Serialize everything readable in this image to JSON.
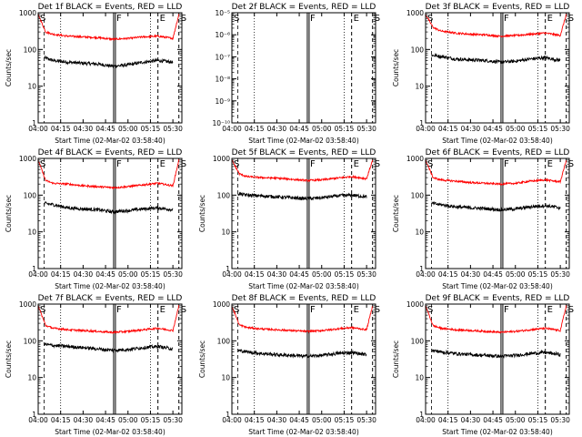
{
  "colors": {
    "events": "#000000",
    "lld": "#ff0000",
    "axis": "#000000",
    "background": "#ffffff"
  },
  "chart_data": [
    {
      "type": "line",
      "title": "Det 1f BLACK = Events, RED = LLD",
      "xlabel": "Start Time (02-Mar-02 03:58:40)",
      "ylabel": "Counts/sec",
      "xlim": [
        "04:00",
        "05:36"
      ],
      "ylim": [
        1,
        1000
      ],
      "yscale": "log",
      "x_ticks": [
        "04:00",
        "04:15",
        "04:30",
        "04:45",
        "05:00",
        "05:15",
        "05:30"
      ],
      "y_ticks": [
        "1",
        "10",
        "100",
        "1000"
      ],
      "markers": [
        {
          "time": "04:00",
          "label": "S"
        },
        {
          "time": "04:51",
          "label": "F"
        },
        {
          "time": "05:20",
          "label": "E"
        },
        {
          "time": "05:34",
          "label": "S"
        }
      ],
      "series": [
        {
          "name": "Events",
          "color": "#000000",
          "x": [
            "04:04",
            "04:10",
            "04:20",
            "04:30",
            "04:40",
            "04:50",
            "05:00",
            "05:10",
            "05:20",
            "05:30"
          ],
          "y": [
            60,
            50,
            45,
            42,
            40,
            35,
            38,
            45,
            50,
            45
          ]
        },
        {
          "name": "LLD",
          "color": "#ff0000",
          "x": [
            "04:00",
            "04:05",
            "04:10",
            "04:20",
            "04:30",
            "04:40",
            "04:50",
            "05:00",
            "05:10",
            "05:20",
            "05:30",
            "05:34"
          ],
          "y": [
            900,
            300,
            260,
            230,
            220,
            210,
            190,
            200,
            220,
            230,
            200,
            900
          ]
        }
      ]
    },
    {
      "type": "line",
      "title": "Det 2f BLACK = Events, RED = LLD",
      "xlabel": "Start Time (02-Mar-02 03:58:40)",
      "ylabel": "",
      "xlim": [
        "04:00",
        "05:36"
      ],
      "ylim": [
        1e-10,
        1e-05
      ],
      "yscale": "log",
      "x_ticks": [
        "04:00",
        "04:15",
        "04:30",
        "04:45",
        "05:00",
        "05:15",
        "05:30"
      ],
      "y_ticks": [
        "10⁻¹⁰",
        "10⁻⁹",
        "10⁻⁸",
        "10⁻⁷",
        "10⁻⁶",
        "10⁻⁵"
      ],
      "markers": [
        {
          "time": "04:00",
          "label": "S"
        },
        {
          "time": "04:51",
          "label": "F"
        },
        {
          "time": "05:20",
          "label": "E"
        },
        {
          "time": "05:34",
          "label": "S"
        }
      ],
      "series": []
    },
    {
      "type": "line",
      "title": "Det 3f BLACK = Events, RED = LLD",
      "xlabel": "Start Time (02-Mar-02 03:58:40)",
      "ylabel": "Counts/sec",
      "xlim": [
        "04:00",
        "05:36"
      ],
      "ylim": [
        1,
        1000
      ],
      "yscale": "log",
      "x_ticks": [
        "04:00",
        "04:15",
        "04:30",
        "04:45",
        "05:00",
        "05:15",
        "05:30"
      ],
      "y_ticks": [
        "1",
        "10",
        "100",
        "1000"
      ],
      "markers": [
        {
          "time": "04:00",
          "label": "S"
        },
        {
          "time": "04:51",
          "label": "F"
        },
        {
          "time": "05:20",
          "label": "E"
        },
        {
          "time": "05:34",
          "label": "S"
        }
      ],
      "series": [
        {
          "name": "Events",
          "color": "#000000",
          "x": [
            "04:04",
            "04:10",
            "04:20",
            "04:30",
            "04:40",
            "04:50",
            "05:00",
            "05:10",
            "05:20",
            "05:30"
          ],
          "y": [
            70,
            65,
            55,
            52,
            50,
            45,
            48,
            55,
            60,
            50
          ]
        },
        {
          "name": "LLD",
          "color": "#ff0000",
          "x": [
            "04:00",
            "04:05",
            "04:10",
            "04:20",
            "04:30",
            "04:40",
            "04:50",
            "05:00",
            "05:10",
            "05:20",
            "05:30",
            "05:34"
          ],
          "y": [
            900,
            400,
            320,
            280,
            260,
            250,
            230,
            240,
            260,
            280,
            240,
            900
          ]
        }
      ]
    },
    {
      "type": "line",
      "title": "Det 4f BLACK = Events, RED = LLD",
      "xlabel": "Start Time (02-Mar-02 03:58:40)",
      "ylabel": "Counts/sec",
      "xlim": [
        "04:00",
        "05:36"
      ],
      "ylim": [
        1,
        1000
      ],
      "yscale": "log",
      "x_ticks": [
        "04:00",
        "04:15",
        "04:30",
        "04:45",
        "05:00",
        "05:15",
        "05:30"
      ],
      "y_ticks": [
        "1",
        "10",
        "100",
        "1000"
      ],
      "markers": [
        {
          "time": "04:00",
          "label": "S"
        },
        {
          "time": "04:51",
          "label": "F"
        },
        {
          "time": "05:20",
          "label": "E"
        },
        {
          "time": "05:34",
          "label": "S"
        }
      ],
      "series": [
        {
          "name": "Events",
          "color": "#000000",
          "x": [
            "04:04",
            "04:10",
            "04:20",
            "04:30",
            "04:40",
            "04:50",
            "05:00",
            "05:10",
            "05:20",
            "05:30"
          ],
          "y": [
            60,
            55,
            45,
            42,
            40,
            35,
            38,
            42,
            45,
            40
          ]
        },
        {
          "name": "LLD",
          "color": "#ff0000",
          "x": [
            "04:00",
            "04:05",
            "04:10",
            "04:20",
            "04:30",
            "04:40",
            "04:50",
            "05:00",
            "05:10",
            "05:20",
            "05:30",
            "05:34"
          ],
          "y": [
            900,
            250,
            210,
            200,
            180,
            170,
            160,
            170,
            190,
            210,
            180,
            900
          ]
        }
      ]
    },
    {
      "type": "line",
      "title": "Det 5f BLACK = Events, RED = LLD",
      "xlabel": "Start Time (02-Mar-02 03:58:40)",
      "ylabel": "Counts/sec",
      "xlim": [
        "04:00",
        "05:36"
      ],
      "ylim": [
        1,
        1000
      ],
      "yscale": "log",
      "x_ticks": [
        "04:00",
        "04:15",
        "04:30",
        "04:45",
        "05:00",
        "05:15",
        "05:30"
      ],
      "y_ticks": [
        "1",
        "10",
        "100",
        "1000"
      ],
      "markers": [
        {
          "time": "04:00",
          "label": "S"
        },
        {
          "time": "04:51",
          "label": "F"
        },
        {
          "time": "05:20",
          "label": "E"
        },
        {
          "time": "05:34",
          "label": "S"
        }
      ],
      "series": [
        {
          "name": "Events",
          "color": "#000000",
          "x": [
            "04:04",
            "04:10",
            "04:20",
            "04:30",
            "04:40",
            "04:50",
            "05:00",
            "05:10",
            "05:20",
            "05:30"
          ],
          "y": [
            110,
            100,
            95,
            90,
            85,
            80,
            85,
            95,
            100,
            90
          ]
        },
        {
          "name": "LLD",
          "color": "#ff0000",
          "x": [
            "04:00",
            "04:05",
            "04:10",
            "04:20",
            "04:30",
            "04:40",
            "04:50",
            "05:00",
            "05:10",
            "05:20",
            "05:30",
            "05:34"
          ],
          "y": [
            900,
            380,
            320,
            300,
            290,
            270,
            250,
            260,
            290,
            320,
            280,
            900
          ]
        }
      ]
    },
    {
      "type": "line",
      "title": "Det 6f BLACK = Events, RED = LLD",
      "xlabel": "Start Time (02-Mar-02 03:58:40)",
      "ylabel": "Counts/sec",
      "xlim": [
        "04:00",
        "05:36"
      ],
      "ylim": [
        1,
        1000
      ],
      "yscale": "log",
      "x_ticks": [
        "04:00",
        "04:15",
        "04:30",
        "04:45",
        "05:00",
        "05:15",
        "05:30"
      ],
      "y_ticks": [
        "1",
        "10",
        "100",
        "1000"
      ],
      "markers": [
        {
          "time": "04:00",
          "label": "S"
        },
        {
          "time": "04:51",
          "label": "F"
        },
        {
          "time": "05:20",
          "label": "E"
        },
        {
          "time": "05:34",
          "label": "S"
        }
      ],
      "series": [
        {
          "name": "Events",
          "color": "#000000",
          "x": [
            "04:04",
            "04:10",
            "04:20",
            "04:30",
            "04:40",
            "04:50",
            "05:00",
            "05:10",
            "05:20",
            "05:30"
          ],
          "y": [
            60,
            55,
            48,
            45,
            43,
            40,
            42,
            48,
            52,
            45
          ]
        },
        {
          "name": "LLD",
          "color": "#ff0000",
          "x": [
            "04:00",
            "04:05",
            "04:10",
            "04:20",
            "04:30",
            "04:40",
            "04:50",
            "05:00",
            "05:10",
            "05:20",
            "05:30",
            "05:34"
          ],
          "y": [
            900,
            300,
            260,
            240,
            220,
            210,
            200,
            210,
            240,
            260,
            230,
            900
          ]
        }
      ]
    },
    {
      "type": "line",
      "title": "Det 7f BLACK = Events, RED = LLD",
      "xlabel": "Start Time (02-Mar-02 03:58:40)",
      "ylabel": "Counts/sec",
      "xlim": [
        "04:00",
        "05:36"
      ],
      "ylim": [
        1,
        1000
      ],
      "yscale": "log",
      "x_ticks": [
        "04:00",
        "04:15",
        "04:30",
        "04:45",
        "05:00",
        "05:15",
        "05:30"
      ],
      "y_ticks": [
        "1",
        "10",
        "100",
        "1000"
      ],
      "markers": [
        {
          "time": "04:00",
          "label": "S"
        },
        {
          "time": "04:51",
          "label": "F"
        },
        {
          "time": "05:20",
          "label": "E"
        },
        {
          "time": "05:34",
          "label": "S"
        }
      ],
      "series": [
        {
          "name": "Events",
          "color": "#000000",
          "x": [
            "04:04",
            "04:10",
            "04:20",
            "04:30",
            "04:40",
            "04:50",
            "05:00",
            "05:10",
            "05:20",
            "05:30"
          ],
          "y": [
            80,
            75,
            70,
            65,
            60,
            55,
            58,
            65,
            70,
            60
          ]
        },
        {
          "name": "LLD",
          "color": "#ff0000",
          "x": [
            "04:00",
            "04:05",
            "04:10",
            "04:20",
            "04:30",
            "04:40",
            "04:50",
            "05:00",
            "05:10",
            "05:20",
            "05:30",
            "05:34"
          ],
          "y": [
            900,
            260,
            220,
            200,
            190,
            180,
            170,
            180,
            200,
            220,
            190,
            900
          ]
        }
      ]
    },
    {
      "type": "line",
      "title": "Det 8f BLACK = Events, RED = LLD",
      "xlabel": "Start Time (02-Mar-02 03:58:40)",
      "ylabel": "Counts/sec",
      "xlim": [
        "04:00",
        "05:36"
      ],
      "ylim": [
        1,
        1000
      ],
      "yscale": "log",
      "x_ticks": [
        "04:00",
        "04:15",
        "04:30",
        "04:45",
        "05:00",
        "05:15",
        "05:30"
      ],
      "y_ticks": [
        "1",
        "10",
        "100",
        "1000"
      ],
      "markers": [
        {
          "time": "04:00",
          "label": "S"
        },
        {
          "time": "04:51",
          "label": "F"
        },
        {
          "time": "05:20",
          "label": "E"
        },
        {
          "time": "05:34",
          "label": "S"
        }
      ],
      "series": [
        {
          "name": "Events",
          "color": "#000000",
          "x": [
            "04:04",
            "04:10",
            "04:20",
            "04:30",
            "04:40",
            "04:50",
            "05:00",
            "05:10",
            "05:20",
            "05:30"
          ],
          "y": [
            55,
            50,
            45,
            42,
            40,
            38,
            40,
            45,
            48,
            42
          ]
        },
        {
          "name": "LLD",
          "color": "#ff0000",
          "x": [
            "04:00",
            "04:05",
            "04:10",
            "04:20",
            "04:30",
            "04:40",
            "04:50",
            "05:00",
            "05:10",
            "05:20",
            "05:30",
            "05:34"
          ],
          "y": [
            900,
            270,
            230,
            210,
            200,
            190,
            180,
            190,
            210,
            230,
            200,
            900
          ]
        }
      ]
    },
    {
      "type": "line",
      "title": "Det 9f BLACK = Events, RED = LLD",
      "xlabel": "Start Time (02-Mar-02 03:58:40)",
      "ylabel": "Counts/sec",
      "xlim": [
        "04:00",
        "05:36"
      ],
      "ylim": [
        1,
        1000
      ],
      "yscale": "log",
      "x_ticks": [
        "04:00",
        "04:15",
        "04:30",
        "04:45",
        "05:00",
        "05:15",
        "05:30"
      ],
      "y_ticks": [
        "1",
        "10",
        "100",
        "1000"
      ],
      "markers": [
        {
          "time": "04:00",
          "label": "S"
        },
        {
          "time": "04:51",
          "label": "F"
        },
        {
          "time": "05:20",
          "label": "E"
        },
        {
          "time": "05:34",
          "label": "S"
        }
      ],
      "series": [
        {
          "name": "Events",
          "color": "#000000",
          "x": [
            "04:04",
            "04:10",
            "04:20",
            "04:30",
            "04:40",
            "04:50",
            "05:00",
            "05:10",
            "05:20",
            "05:30"
          ],
          "y": [
            55,
            50,
            45,
            42,
            40,
            38,
            40,
            45,
            48,
            42
          ]
        },
        {
          "name": "LLD",
          "color": "#ff0000",
          "x": [
            "04:00",
            "04:05",
            "04:10",
            "04:20",
            "04:30",
            "04:40",
            "04:50",
            "05:00",
            "05:10",
            "05:20",
            "05:30",
            "05:34"
          ],
          "y": [
            900,
            260,
            220,
            200,
            190,
            180,
            170,
            180,
            200,
            220,
            190,
            900
          ]
        }
      ]
    }
  ]
}
